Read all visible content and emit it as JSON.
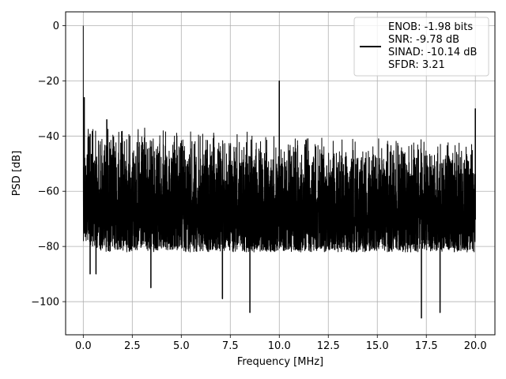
{
  "chart_data": {
    "type": "line",
    "title": "",
    "xlabel": "Frequency [MHz]",
    "ylabel": "PSD [dB]",
    "xlim": [
      -0.9,
      21.0
    ],
    "ylim": [
      -112,
      5
    ],
    "xticks": [
      0.0,
      2.5,
      5.0,
      7.5,
      10.0,
      12.5,
      15.0,
      17.5,
      20.0
    ],
    "xtick_labels": [
      "0.0",
      "2.5",
      "5.0",
      "7.5",
      "10.0",
      "12.5",
      "15.0",
      "17.5",
      "20.0"
    ],
    "yticks": [
      0,
      -20,
      -40,
      -60,
      -80,
      -100
    ],
    "ytick_labels": [
      "0",
      "−20",
      "−40",
      "−60",
      "−80",
      "−100"
    ],
    "grid": true,
    "legend_position": "top-right",
    "color": "#000000",
    "series": [
      {
        "noise_envelope": {
          "x": [
            0.0,
            0.5,
            1.0,
            2.5,
            5.0,
            7.5,
            10.0,
            12.5,
            15.0,
            17.5,
            20.0
          ],
          "upper": [
            -35,
            -35,
            -35,
            -36,
            -37,
            -38,
            -38.5,
            -39.5,
            -40,
            -40.5,
            -41
          ],
          "lower": [
            -78,
            -80,
            -82,
            -82,
            -82,
            -82,
            -82,
            -82,
            -82,
            -82,
            -82
          ]
        },
        "peaks": [
          {
            "x": 0.0,
            "y": 0
          },
          {
            "x": 0.05,
            "y": -26
          },
          {
            "x": 1.2,
            "y": -34
          },
          {
            "x": 10.0,
            "y": -20
          },
          {
            "x": 20.0,
            "y": -30
          }
        ],
        "dips": [
          {
            "x": 0.35,
            "y": -90
          },
          {
            "x": 0.65,
            "y": -90
          },
          {
            "x": 3.45,
            "y": -95
          },
          {
            "x": 7.1,
            "y": -99
          },
          {
            "x": 8.5,
            "y": -104
          },
          {
            "x": 17.25,
            "y": -106
          },
          {
            "x": 18.2,
            "y": -104
          }
        ]
      }
    ],
    "legend": {
      "lines": [
        "ENOB: -1.98 bits",
        "SNR: -9.78 dB",
        "SINAD: -10.14 dB",
        "SFDR: 3.21"
      ]
    }
  }
}
